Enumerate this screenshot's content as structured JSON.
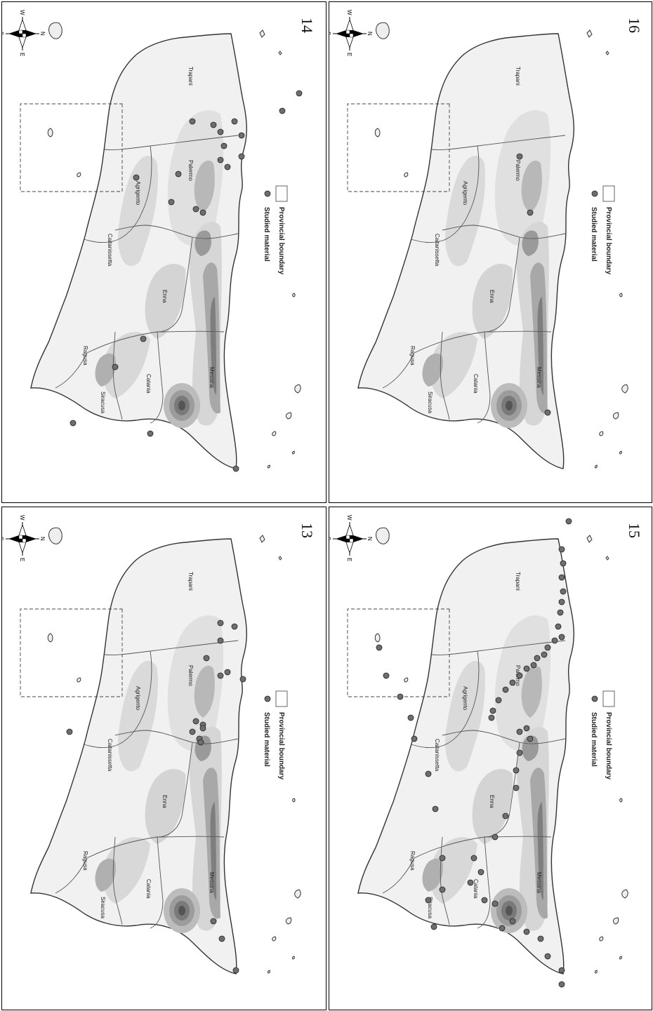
{
  "legend": {
    "provincial_boundary": "Provincial boundary",
    "studied_material": "Studied material"
  },
  "compass": {
    "north": "N",
    "east": "E",
    "south": "S",
    "west": "W"
  },
  "provinces": [
    "Trapani",
    "Palermo",
    "Agrigento",
    "Caltanissetta",
    "Enna",
    "Messina",
    "Catania",
    "Siracusa",
    "Ragusa"
  ],
  "panels": [
    {
      "id": "14",
      "number": "14"
    },
    {
      "id": "16",
      "number": "16"
    },
    {
      "id": "13",
      "number": "13"
    },
    {
      "id": "15",
      "number": "15"
    }
  ],
  "colors": {
    "studied_marker": "#6e6e6e",
    "boundary": "#555555",
    "relief_low": "#dcdcdc",
    "relief_mid": "#b4b4b4",
    "relief_high": "#8a8a8a",
    "etna_peak": "#5a5a5a"
  }
}
